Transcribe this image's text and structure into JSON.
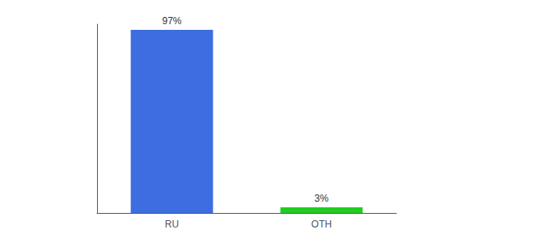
{
  "chart_data": {
    "type": "bar",
    "categories": [
      "RU",
      "OTH"
    ],
    "values": [
      97,
      3
    ],
    "value_labels": [
      "97%",
      "3%"
    ],
    "colors": [
      "#3d6de0",
      "#22cc22"
    ],
    "ylim": [
      0,
      100
    ],
    "grid": false,
    "data_labels": true,
    "tick_labels": "x"
  }
}
